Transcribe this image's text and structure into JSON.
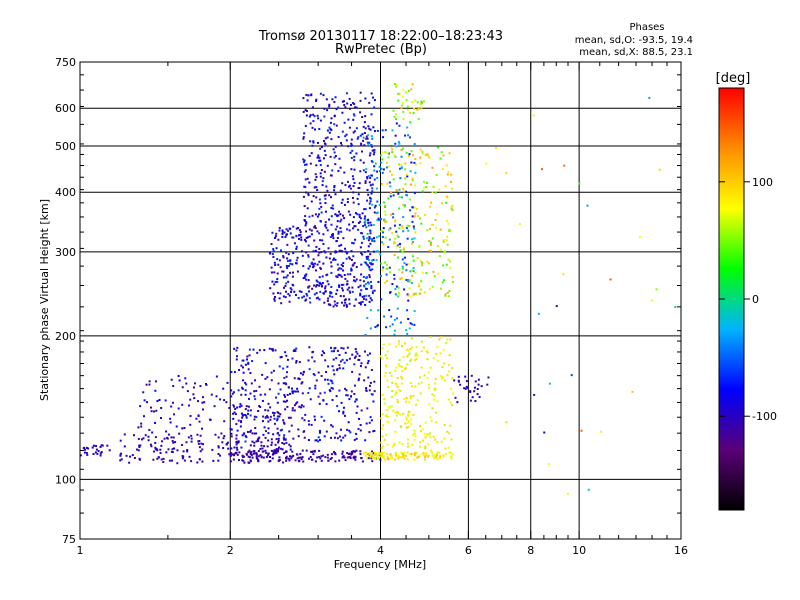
{
  "chart_data": {
    "type": "scatter",
    "title": "Tromsø 20130117 18:22:00–18:23:43",
    "subtitle": "RwPretec (Bp)",
    "xlabel": "Frequency [MHz]",
    "ylabel": "Stationary phase Virtual Height [km]",
    "x_scale": "log",
    "y_scale": "log",
    "xlim": [
      1,
      16
    ],
    "ylim": [
      75,
      750
    ],
    "x_ticks": [
      1,
      2,
      4,
      6,
      8,
      10,
      16
    ],
    "y_ticks": [
      75,
      100,
      200,
      300,
      400,
      500,
      600,
      750
    ],
    "x_gridlines": [
      2,
      4,
      6,
      8,
      10
    ],
    "y_gridlines": [
      100,
      200,
      300,
      400,
      500,
      600
    ],
    "grid": true,
    "stats": {
      "heading": "Phases",
      "line_o": "mean, sd,O: -93.5, 19.4",
      "line_x": "mean, sd,X:  88.5, 23.1"
    },
    "colorbar": {
      "label": "[deg]",
      "range": [
        -180,
        180
      ],
      "ticks": [
        {
          "value": 100,
          "label": "100"
        },
        {
          "value": 0,
          "label": "0"
        },
        {
          "value": -100,
          "label": "-100"
        }
      ],
      "colors": [
        "#000000",
        "#5a0078",
        "#0000ff",
        "#00b4ff",
        "#00ff00",
        "#ffff00",
        "#ff8c00",
        "#ff0000"
      ]
    },
    "clusters": [
      {
        "name": "o-trace-low",
        "x": [
          1.2,
          2.6
        ],
        "y": [
          108,
          125
        ],
        "phase": [
          -120,
          -90
        ],
        "count": 160
      },
      {
        "name": "o-trace-rise",
        "x": [
          1.3,
          2.8
        ],
        "y": [
          115,
          165
        ],
        "phase": [
          -120,
          -80
        ],
        "count": 190
      },
      {
        "name": "o-e-layer-flat",
        "x": [
          2.0,
          4.0
        ],
        "y": [
          109,
          115
        ],
        "phase": [
          -120,
          -100
        ],
        "count": 170
      },
      {
        "name": "o-region-mid",
        "x": [
          2.0,
          3.9
        ],
        "y": [
          120,
          190
        ],
        "phase": [
          -120,
          -60
        ],
        "count": 340
      },
      {
        "name": "o-f-layer",
        "x": [
          2.4,
          3.9
        ],
        "y": [
          230,
          340
        ],
        "phase": [
          -120,
          -60
        ],
        "count": 420
      },
      {
        "name": "o-f-upper",
        "x": [
          2.8,
          3.9
        ],
        "y": [
          340,
          650
        ],
        "phase": [
          -120,
          -60
        ],
        "count": 330
      },
      {
        "name": "f-transition",
        "x": [
          3.7,
          4.7
        ],
        "y": [
          200,
          560
        ],
        "phase": [
          -90,
          -10
        ],
        "count": 230
      },
      {
        "name": "x-f-layer",
        "x": [
          4.0,
          5.6
        ],
        "y": [
          240,
          500
        ],
        "phase": [
          30,
          120
        ],
        "count": 230
      },
      {
        "name": "x-f-top",
        "x": [
          4.2,
          4.9
        ],
        "y": [
          560,
          680
        ],
        "phase": [
          30,
          110
        ],
        "count": 40
      },
      {
        "name": "x-lower",
        "x": [
          4.0,
          5.6
        ],
        "y": [
          115,
          200
        ],
        "phase": [
          60,
          100
        ],
        "count": 230
      },
      {
        "name": "x-e-flat",
        "x": [
          3.7,
          5.6
        ],
        "y": [
          110,
          114
        ],
        "phase": [
          60,
          110
        ],
        "count": 120
      },
      {
        "name": "o-near-6",
        "x": [
          5.5,
          6.6
        ],
        "y": [
          145,
          165
        ],
        "phase": [
          -120,
          -90
        ],
        "count": 30
      },
      {
        "name": "o-start-1MHz",
        "x": [
          1.0,
          1.15
        ],
        "y": [
          112,
          118
        ],
        "phase": [
          -110,
          -90
        ],
        "count": 25
      },
      {
        "name": "sparse-high",
        "x": [
          6.5,
          16
        ],
        "y": [
          90,
          650
        ],
        "phase": [
          -120,
          150
        ],
        "count": 30
      }
    ]
  }
}
